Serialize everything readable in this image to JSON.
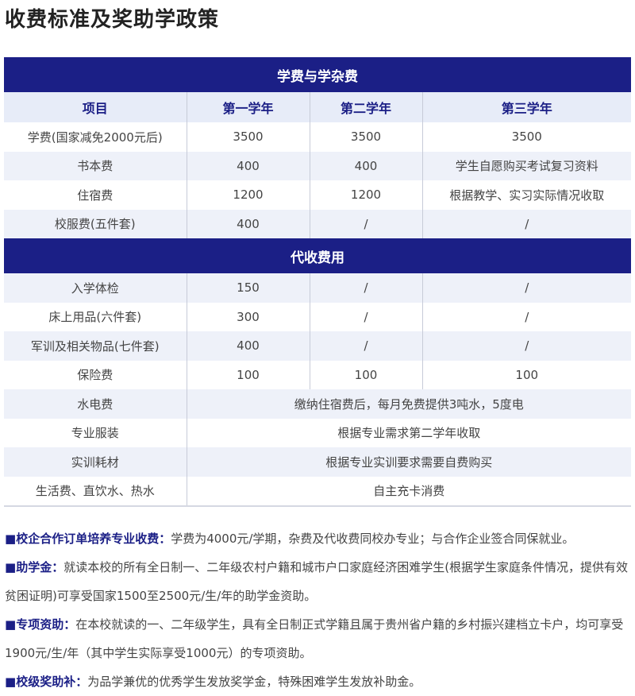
{
  "title": "收费标准及奖助学政策",
  "colors": {
    "accent": "#1b1f86",
    "row_alt": "#eef1f9"
  },
  "section1": {
    "title": "学费与学杂费",
    "headers": [
      "项目",
      "第一学年",
      "第二学年",
      "第三学年"
    ],
    "rows": [
      [
        "学费(国家减免2000元后)",
        "3500",
        "3500",
        "3500"
      ],
      [
        "书本费",
        "400",
        "400",
        "学生自愿购买考试复习资料"
      ],
      [
        "住宿费",
        "1200",
        "1200",
        "根据教学、实习实际情况收取"
      ],
      [
        "校服费(五件套)",
        "400",
        "/",
        "/"
      ]
    ]
  },
  "section2": {
    "title": "代收费用",
    "rows": [
      [
        "入学体检",
        "150",
        "/",
        "/"
      ],
      [
        "床上用品(六件套)",
        "300",
        "/",
        "/"
      ],
      [
        "军训及相关物品(七件套)",
        "400",
        "/",
        "/"
      ],
      [
        "保险费",
        "100",
        "100",
        "100"
      ]
    ],
    "merged_rows": [
      [
        "水电费",
        "缴纳住宿费后，每月免费提供3吨水，5度电"
      ],
      [
        "专业服装",
        "根据专业需求第二学年收取"
      ],
      [
        "实训耗材",
        "根据专业实训要求需要自费购买"
      ],
      [
        "生活费、直饮水、热水",
        "自主充卡消费"
      ]
    ]
  },
  "notes": [
    {
      "label": "校企合作订单培养专业收费：",
      "text": "学费为4000元/学期，杂费及代收费同校办专业；与合作企业签合同保就业。"
    },
    {
      "label": "助学金：",
      "text": "就读本校的所有全日制一、二年级农村户籍和城市户口家庭经济困难学生(根据学生家庭条件情况，提供有效贫困证明)可享受国家1500至2500元/生/年的助学金资助。"
    },
    {
      "label": "专项资助：",
      "text": "在本校就读的一、二年级学生，具有全日制正式学籍且属于贵州省户籍的乡村振兴建档立卡户，均可享受1900元/生/年（其中学生实际享受1000元）的专项资助。"
    },
    {
      "label": "校级奖助补：",
      "text": "为品学兼优的优秀学生发放奖学金，特殊困难学生发放补助金。"
    }
  ],
  "bullet": "■"
}
